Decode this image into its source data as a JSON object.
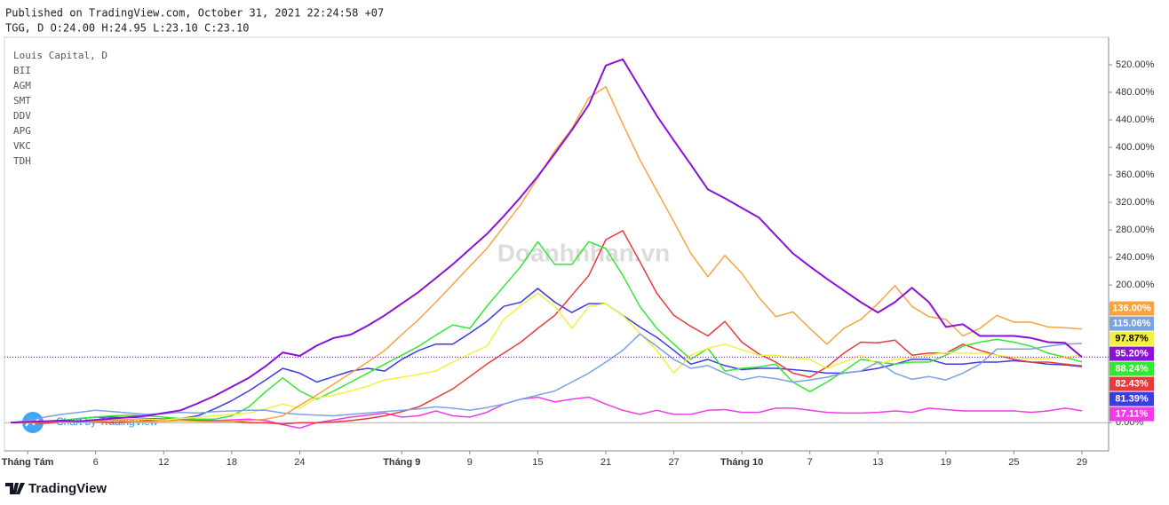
{
  "chart_data": {
    "type": "line",
    "published": "Published on TradingView.com, October 31, 2021 22:24:58 +07",
    "symbol_info": "TGG, D O:24.00 H:24.95 L:23.10 C:23.10",
    "watermark": "Doanhnhan.vn",
    "attribution": "Chart by TradingView",
    "brand": "TradingView",
    "categories": [
      null,
      "Tháng Tám",
      null,
      null,
      null,
      "6",
      null,
      null,
      null,
      "12",
      null,
      null,
      null,
      "18",
      null,
      null,
      null,
      "24",
      null,
      null,
      null,
      null,
      null,
      "Tháng 9",
      null,
      null,
      null,
      "9",
      null,
      null,
      null,
      "15",
      null,
      null,
      null,
      "21",
      null,
      null,
      null,
      "27",
      null,
      null,
      null,
      "Tháng 10",
      null,
      null,
      null,
      "7",
      null,
      null,
      null,
      "13",
      null,
      null,
      null,
      "19",
      null,
      null,
      null,
      "25",
      null,
      null,
      null,
      "29"
    ],
    "ylim": [
      -41,
      560
    ],
    "yticks": [
      {
        "value": 0,
        "label": "0.00%"
      },
      {
        "value": 200,
        "label": "200.00%"
      },
      {
        "value": 240,
        "label": "240.00%"
      },
      {
        "value": 280,
        "label": "280.00%"
      },
      {
        "value": 320,
        "label": "320.00%"
      },
      {
        "value": 360,
        "label": "360.00%"
      },
      {
        "value": 400,
        "label": "400.00%"
      },
      {
        "value": 440,
        "label": "440.00%"
      },
      {
        "value": 480,
        "label": "480.00%"
      },
      {
        "value": 520,
        "label": "520.00%"
      }
    ],
    "grid": false,
    "series": [
      {
        "name": "Louis Capital, D",
        "color": "#8b12d6",
        "values": [
          0,
          1,
          2,
          3,
          2,
          4,
          6,
          8,
          10,
          14,
          18,
          28,
          39,
          52,
          65,
          82,
          102,
          97,
          112,
          123,
          128,
          141,
          156,
          173,
          190,
          210,
          230,
          252,
          274,
          300,
          328,
          358,
          391,
          425,
          462,
          519,
          528,
          487,
          446,
          410,
          375,
          339,
          326,
          312,
          298,
          272,
          246,
          227,
          209,
          192,
          175,
          160,
          175,
          196,
          175,
          139,
          143,
          126,
          126,
          126,
          123,
          117,
          116,
          95.2
        ],
        "value_labels": [
          null,
          null,
          null,
          null,
          null,
          null,
          null,
          null,
          null,
          null,
          null,
          null,
          null,
          null,
          null,
          null,
          null,
          null,
          null,
          null,
          null,
          null,
          null,
          null,
          null,
          null,
          null,
          null,
          null,
          null,
          null,
          null,
          null,
          null,
          null,
          null,
          null,
          null,
          null,
          null,
          null,
          null,
          null,
          null,
          null,
          null,
          null,
          null,
          null,
          null,
          null,
          null,
          null,
          null,
          null,
          null,
          null,
          null,
          null,
          null,
          null,
          null,
          null,
          "95.20%"
        ]
      },
      {
        "name": "BII",
        "color": "#f7a440",
        "values": [
          0,
          0,
          1,
          2,
          1,
          2,
          3,
          2,
          1,
          2,
          3,
          2,
          1,
          2,
          3,
          5,
          10,
          25,
          40,
          56,
          72,
          88,
          105,
          128,
          150,
          175,
          201,
          227,
          253,
          285,
          317,
          356,
          395,
          427,
          472,
          488,
          434,
          382,
          337,
          292,
          246,
          212,
          243,
          217,
          182,
          154,
          161,
          137,
          114,
          137,
          150,
          173,
          199,
          169,
          154,
          150,
          126,
          137,
          156,
          146,
          146,
          139,
          138,
          136
        ],
        "value_labels": [
          null,
          null,
          null,
          null,
          null,
          null,
          null,
          null,
          null,
          null,
          null,
          null,
          null,
          null,
          null,
          null,
          null,
          null,
          null,
          null,
          null,
          null,
          null,
          null,
          null,
          null,
          null,
          null,
          null,
          null,
          null,
          null,
          null,
          null,
          null,
          null,
          null,
          null,
          null,
          null,
          null,
          null,
          null,
          null,
          null,
          null,
          null,
          null,
          null,
          null,
          null,
          null,
          null,
          null,
          null,
          null,
          null,
          null,
          null,
          null,
          null,
          null,
          null,
          "136.00%"
        ]
      },
      {
        "name": "AGM",
        "color": "#7aa3e0",
        "values": [
          0,
          3,
          8,
          12,
          15,
          18,
          16,
          14,
          12,
          13,
          15,
          14,
          16,
          17,
          18,
          18,
          14,
          12,
          11,
          10,
          12,
          14,
          16,
          18,
          20,
          23,
          21,
          18,
          22,
          27,
          34,
          40,
          46,
          59,
          72,
          88,
          105,
          129,
          111,
          92,
          79,
          83,
          72,
          62,
          67,
          64,
          59,
          62,
          66,
          72,
          75,
          88,
          72,
          63,
          67,
          62,
          72,
          85,
          107,
          107,
          107,
          111,
          114,
          115.06
        ],
        "value_labels": [
          null,
          null,
          null,
          null,
          null,
          null,
          null,
          null,
          null,
          null,
          null,
          null,
          null,
          null,
          null,
          null,
          null,
          null,
          null,
          null,
          null,
          null,
          null,
          null,
          null,
          null,
          null,
          null,
          null,
          null,
          null,
          null,
          null,
          null,
          null,
          null,
          null,
          null,
          null,
          null,
          null,
          null,
          null,
          null,
          null,
          null,
          null,
          null,
          null,
          null,
          null,
          null,
          null,
          null,
          null,
          null,
          null,
          null,
          null,
          null,
          null,
          null,
          null,
          "115.06%"
        ]
      },
      {
        "name": "SMT",
        "color": "#f2f040",
        "values": [
          0,
          1,
          2,
          3,
          2,
          4,
          5,
          6,
          5,
          4,
          6,
          8,
          10,
          12,
          14,
          20,
          27,
          21,
          36,
          40,
          46,
          53,
          62,
          66,
          70,
          75,
          88,
          100,
          111,
          150,
          170,
          188,
          169,
          137,
          169,
          173,
          156,
          130,
          105,
          72,
          98,
          108,
          114,
          106,
          98,
          98,
          94,
          92,
          79,
          88,
          98,
          85,
          92,
          94,
          98,
          102,
          101,
          101,
          98,
          95,
          93,
          93,
          95,
          97.87
        ],
        "value_labels": [
          null,
          null,
          null,
          null,
          null,
          null,
          null,
          null,
          null,
          null,
          null,
          null,
          null,
          null,
          null,
          null,
          null,
          null,
          null,
          null,
          null,
          null,
          null,
          null,
          null,
          null,
          null,
          null,
          null,
          null,
          null,
          null,
          null,
          null,
          null,
          null,
          null,
          null,
          null,
          null,
          null,
          null,
          null,
          null,
          null,
          null,
          null,
          null,
          null,
          null,
          null,
          null,
          null,
          null,
          null,
          null,
          null,
          null,
          null,
          null,
          null,
          null,
          null,
          "97.87%"
        ]
      },
      {
        "name": "DDV",
        "color": "#33e833",
        "values": [
          0,
          1,
          2,
          3,
          6,
          8,
          10,
          11,
          10,
          8,
          6,
          5,
          5,
          10,
          23,
          45,
          65,
          46,
          34,
          46,
          59,
          72,
          85,
          98,
          111,
          127,
          142,
          137,
          169,
          198,
          227,
          263,
          230,
          230,
          263,
          253,
          214,
          169,
          137,
          114,
          92,
          108,
          75,
          79,
          81,
          85,
          59,
          45,
          59,
          75,
          92,
          88,
          85,
          88,
          88,
          98,
          111,
          117,
          121,
          117,
          111,
          101,
          95,
          88.24
        ],
        "value_labels": [
          null,
          null,
          null,
          null,
          null,
          null,
          null,
          null,
          null,
          null,
          null,
          null,
          null,
          null,
          null,
          null,
          null,
          null,
          null,
          null,
          null,
          null,
          null,
          null,
          null,
          null,
          null,
          null,
          null,
          null,
          null,
          null,
          null,
          null,
          null,
          null,
          null,
          null,
          null,
          null,
          null,
          null,
          null,
          null,
          null,
          null,
          null,
          null,
          null,
          null,
          null,
          null,
          null,
          null,
          null,
          null,
          null,
          null,
          null,
          null,
          null,
          null,
          null,
          "88.24%"
        ]
      },
      {
        "name": "APG",
        "color": "#e83a3a",
        "values": [
          0,
          0,
          -1,
          1,
          2,
          1,
          0,
          1,
          3,
          4,
          5,
          3,
          1,
          2,
          0,
          0,
          -2,
          0,
          0,
          1,
          3,
          6,
          10,
          16,
          23,
          36,
          49,
          67,
          85,
          101,
          117,
          137,
          156,
          185,
          214,
          266,
          279,
          234,
          188,
          156,
          140,
          126,
          147,
          117,
          100,
          88,
          72,
          66,
          81,
          101,
          117,
          116,
          120,
          98,
          101,
          101,
          114,
          105,
          98,
          92,
          88,
          88,
          85,
          82.43
        ],
        "value_labels": [
          null,
          null,
          null,
          null,
          null,
          null,
          null,
          null,
          null,
          null,
          null,
          null,
          null,
          null,
          null,
          null,
          null,
          null,
          null,
          null,
          null,
          null,
          null,
          null,
          null,
          null,
          null,
          null,
          null,
          null,
          null,
          null,
          null,
          null,
          null,
          null,
          null,
          null,
          null,
          null,
          null,
          null,
          null,
          null,
          null,
          null,
          null,
          null,
          null,
          null,
          null,
          null,
          null,
          null,
          null,
          null,
          null,
          null,
          null,
          null,
          null,
          null,
          null,
          "82.43%"
        ]
      },
      {
        "name": "VKC",
        "color": "#3c3ce0",
        "values": [
          0,
          1,
          2,
          3,
          6,
          8,
          8,
          7,
          6,
          5,
          6,
          10,
          20,
          32,
          46,
          62,
          79,
          72,
          59,
          67,
          75,
          79,
          75,
          92,
          105,
          114,
          114,
          130,
          147,
          169,
          175,
          195,
          175,
          160,
          173,
          173,
          156,
          139,
          124,
          105,
          85,
          92,
          83,
          77,
          79,
          79,
          77,
          75,
          72,
          72,
          75,
          79,
          85,
          92,
          92,
          85,
          85,
          88,
          88,
          90,
          88,
          85,
          84,
          81.39
        ],
        "value_labels": [
          null,
          null,
          null,
          null,
          null,
          null,
          null,
          null,
          null,
          null,
          null,
          null,
          null,
          null,
          null,
          null,
          null,
          null,
          null,
          null,
          null,
          null,
          null,
          null,
          null,
          null,
          null,
          null,
          null,
          null,
          null,
          null,
          null,
          null,
          null,
          null,
          null,
          null,
          null,
          null,
          null,
          null,
          null,
          null,
          null,
          null,
          null,
          null,
          null,
          null,
          null,
          null,
          null,
          null,
          null,
          null,
          null,
          null,
          null,
          null,
          null,
          null,
          null,
          "81.39%"
        ]
      },
      {
        "name": "TDH",
        "color": "#f03ce8",
        "values": [
          0,
          1,
          2,
          1,
          2,
          3,
          4,
          5,
          5,
          4,
          5,
          4,
          3,
          4,
          5,
          3,
          -3,
          -8,
          0,
          4,
          8,
          11,
          14,
          8,
          10,
          17,
          10,
          8,
          15,
          27,
          34,
          37,
          30,
          34,
          37,
          27,
          18,
          12,
          18,
          12,
          12,
          18,
          19,
          15,
          15,
          21,
          21,
          18,
          15,
          14,
          14,
          15,
          17,
          15,
          21,
          19,
          17,
          17,
          17,
          17,
          15,
          17,
          21,
          17.11
        ],
        "value_labels": [
          null,
          null,
          null,
          null,
          null,
          null,
          null,
          null,
          null,
          null,
          null,
          null,
          null,
          null,
          null,
          null,
          null,
          null,
          null,
          null,
          null,
          null,
          null,
          null,
          null,
          null,
          null,
          null,
          null,
          null,
          null,
          null,
          null,
          null,
          null,
          null,
          null,
          null,
          null,
          null,
          null,
          null,
          null,
          null,
          null,
          null,
          null,
          null,
          null,
          null,
          null,
          null,
          null,
          null,
          null,
          null,
          null,
          null,
          null,
          null,
          null,
          null,
          null,
          "17.11%"
        ]
      }
    ]
  }
}
